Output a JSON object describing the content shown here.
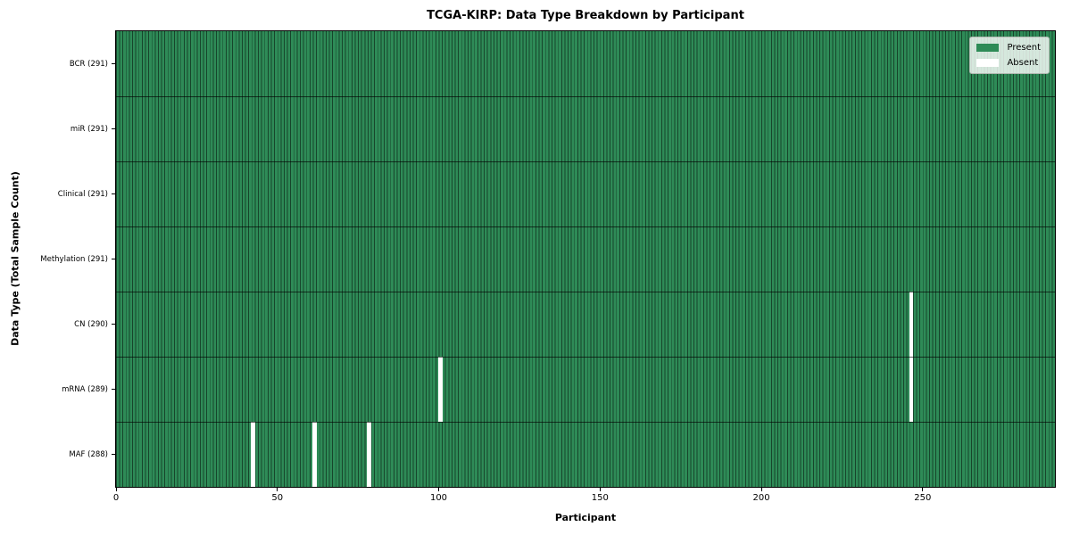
{
  "chart_data": {
    "type": "heatmap",
    "title": "TCGA-KIRP: Data Type Breakdown by Participant",
    "xlabel": "Participant",
    "ylabel": "Data Type (Total Sample Count)",
    "x_ticks": [
      0,
      50,
      100,
      150,
      200,
      250
    ],
    "xlim": [
      0,
      291
    ],
    "n_participants": 291,
    "grid": "cell-edges",
    "rows": [
      {
        "label": "BCR (291)",
        "data_type": "BCR",
        "total_samples": 291,
        "absent_participant_indices": []
      },
      {
        "label": "miR (291)",
        "data_type": "miR",
        "total_samples": 291,
        "absent_participant_indices": []
      },
      {
        "label": "Clinical (291)",
        "data_type": "Clinical",
        "total_samples": 291,
        "absent_participant_indices": []
      },
      {
        "label": "Methylation (291)",
        "data_type": "Methylation",
        "total_samples": 291,
        "absent_participant_indices": []
      },
      {
        "label": "CN (290)",
        "data_type": "CN",
        "total_samples": 290,
        "absent_participant_indices": [
          246
        ]
      },
      {
        "label": "mRNA (289)",
        "data_type": "mRNA",
        "total_samples": 289,
        "absent_participant_indices": [
          100,
          246
        ]
      },
      {
        "label": "MAF (288)",
        "data_type": "MAF",
        "total_samples": 288,
        "absent_participant_indices": [
          42,
          61,
          78
        ]
      }
    ],
    "legend": {
      "position": "upper-right",
      "entries": [
        {
          "label": "Present",
          "color": "#2e8b57"
        },
        {
          "label": "Absent",
          "color": "#ffffff"
        }
      ]
    },
    "colors": {
      "present": "#2e8b57",
      "absent": "#ffffff"
    }
  }
}
